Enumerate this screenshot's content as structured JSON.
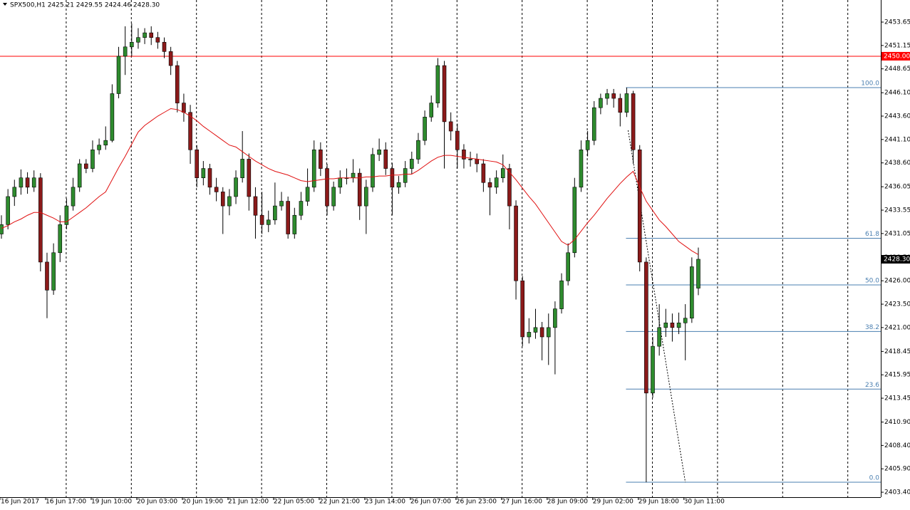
{
  "chart_data": {
    "type": "candlestick",
    "title": "SPX500,H1  2425.21 2429.55 2424.46 2428.30",
    "up_color": "#2e8b2e",
    "down_color": "#8b1a1a",
    "ylim": [
      2402.87,
      2456.01
    ],
    "yticks": [
      2453.65,
      2451.15,
      2448.65,
      {
        "value": 2446.1,
        "label": "2446.10"
      },
      {
        "value": 2443.6,
        "label": "2443.60"
      },
      {
        "value": 2441.1,
        "label": "2441.10"
      },
      {
        "value": 2438.6,
        "label": "2438.60"
      },
      2436.05,
      2433.55,
      2431.05,
      {
        "value": 2428.5,
        "label": "2428.50"
      },
      {
        "value": 2426,
        "label": "2426.00"
      },
      {
        "value": 2423.5,
        "label": "2423.50"
      },
      {
        "value": 2421,
        "label": "2421.00"
      },
      2418.45,
      2415.95,
      2413.45,
      {
        "value": 2410.9,
        "label": "2410.90"
      },
      {
        "value": 2408.4,
        "label": "2408.40"
      },
      {
        "value": 2405.9,
        "label": "2405.90"
      },
      {
        "value": 2403.4,
        "label": "2403.40"
      }
    ],
    "categories": [
      "16 Jun 2017",
      null,
      null,
      null,
      null,
      null,
      null,
      "16 Jun 17:00",
      null,
      null,
      null,
      null,
      null,
      null,
      "19 Jun 10:00",
      null,
      null,
      null,
      null,
      null,
      null,
      "20 Jun 03:00",
      null,
      null,
      null,
      null,
      null,
      null,
      "20 Jun 19:00",
      null,
      null,
      null,
      null,
      null,
      null,
      "21 Jun 12:00",
      null,
      null,
      null,
      null,
      null,
      null,
      "22 Jun 05:00",
      null,
      null,
      null,
      null,
      null,
      null,
      "22 Jun 21:00",
      null,
      null,
      null,
      null,
      null,
      null,
      "23 Jun 14:00",
      null,
      null,
      null,
      null,
      null,
      null,
      "26 Jun 07:00",
      null,
      null,
      null,
      null,
      null,
      null,
      "26 Jun 23:00",
      null,
      null,
      null,
      null,
      null,
      null,
      "27 Jun 16:00",
      null,
      null,
      null,
      null,
      null,
      null,
      "28 Jun 09:00",
      null,
      null,
      null,
      null,
      null,
      null,
      "29 Jun 02:00",
      null,
      null,
      null,
      null,
      null,
      null,
      "29 Jun 18:00",
      null,
      null,
      null,
      null,
      null,
      null,
      "30 Jun 11:00",
      null,
      null
    ],
    "ohlc": [
      [
        2431,
        2433,
        2430.5,
        2432
      ],
      [
        2432,
        2435.8,
        2431.5,
        2435
      ],
      [
        2435,
        2436.8,
        2434,
        2436
      ],
      [
        2436,
        2437.9,
        2435.2,
        2437
      ],
      [
        2437,
        2437.6,
        2435.3,
        2436
      ],
      [
        2436,
        2437.8,
        2435.5,
        2437
      ],
      [
        2437,
        2437.5,
        2427,
        2428
      ],
      [
        2428,
        2429,
        2422,
        2425
      ],
      [
        2425,
        2430,
        2424.5,
        2429
      ],
      [
        2429,
        2433,
        2428,
        2432
      ],
      [
        2432,
        2434.8,
        2431.5,
        2434
      ],
      [
        2434,
        2437,
        2433.5,
        2436
      ],
      [
        2436,
        2439,
        2435.5,
        2438.5
      ],
      [
        2438.5,
        2439,
        2437.5,
        2438
      ],
      [
        2438,
        2441,
        2437.6,
        2440
      ],
      [
        2440,
        2441.2,
        2439.5,
        2440.5
      ],
      [
        2440.5,
        2442.5,
        2440,
        2441
      ],
      [
        2441,
        2447,
        2440.8,
        2446
      ],
      [
        2446,
        2451,
        2445.5,
        2450
      ],
      [
        2450,
        2453.2,
        2448,
        2451
      ],
      [
        2451,
        2453.5,
        2450,
        2451.5
      ],
      [
        2451.5,
        2453,
        2450.8,
        2452
      ],
      [
        2452,
        2453,
        2451.3,
        2452.5
      ],
      [
        2452.5,
        2453.2,
        2451.2,
        2452
      ],
      [
        2452,
        2452.6,
        2450.8,
        2451.5
      ],
      [
        2451.5,
        2452,
        2449.8,
        2450.5
      ],
      [
        2450.5,
        2451,
        2448,
        2449
      ],
      [
        2449,
        2449.5,
        2444,
        2445
      ],
      [
        2445,
        2446,
        2443,
        2444
      ],
      [
        2444,
        2444.8,
        2438.5,
        2440
      ],
      [
        2440,
        2440.5,
        2436,
        2437
      ],
      [
        2437,
        2438.8,
        2436.2,
        2438
      ],
      [
        2438,
        2438.5,
        2435.2,
        2436
      ],
      [
        2436,
        2437,
        2434.5,
        2435.5
      ],
      [
        2435.5,
        2436,
        2431,
        2434
      ],
      [
        2434,
        2435.8,
        2433,
        2435
      ],
      [
        2435,
        2437.8,
        2434.2,
        2437
      ],
      [
        2437,
        2442,
        2436.5,
        2439
      ],
      [
        2439,
        2439.6,
        2433.5,
        2435
      ],
      [
        2435,
        2436,
        2430.5,
        2433
      ],
      [
        2433,
        2435.5,
        2431,
        2432
      ],
      [
        2432,
        2433.5,
        2431.2,
        2432.5
      ],
      [
        2432.5,
        2436.5,
        2432,
        2434
      ],
      [
        2434,
        2435.5,
        2433.5,
        2434.5
      ],
      [
        2434.5,
        2435,
        2430.5,
        2431
      ],
      [
        2431,
        2433.8,
        2430.5,
        2433
      ],
      [
        2433,
        2435.5,
        2432.5,
        2434.5
      ],
      [
        2434.5,
        2438,
        2434,
        2436
      ],
      [
        2436,
        2441,
        2435.5,
        2440
      ],
      [
        2440,
        2440.8,
        2437.2,
        2438
      ],
      [
        2438,
        2438.5,
        2433,
        2434
      ],
      [
        2434,
        2436.6,
        2433.5,
        2436
      ],
      [
        2436,
        2437.8,
        2435.3,
        2437
      ],
      [
        2437,
        2438,
        2436.3,
        2437
      ],
      [
        2437,
        2439,
        2436.5,
        2437.5
      ],
      [
        2437.5,
        2438,
        2432.5,
        2434
      ],
      [
        2434,
        2436.8,
        2431,
        2436
      ],
      [
        2436,
        2440.2,
        2435.5,
        2439.5
      ],
      [
        2439.5,
        2441.2,
        2438.8,
        2440
      ],
      [
        2440,
        2440.8,
        2437.3,
        2438
      ],
      [
        2438,
        2438.6,
        2433,
        2436
      ],
      [
        2436,
        2437.2,
        2435.3,
        2436.5
      ],
      [
        2436.5,
        2438.8,
        2436,
        2438
      ],
      [
        2438,
        2439.8,
        2437.4,
        2439
      ],
      [
        2439,
        2441.8,
        2438.5,
        2441
      ],
      [
        2441,
        2444.2,
        2440.5,
        2443.5
      ],
      [
        2443.5,
        2445.8,
        2443,
        2445
      ],
      [
        2445,
        2449.8,
        2444.5,
        2449
      ],
      [
        2449,
        2449.5,
        2438,
        2443
      ],
      [
        2443,
        2444,
        2441,
        2442
      ],
      [
        2442,
        2442.8,
        2438,
        2440
      ],
      [
        2440,
        2440.6,
        2438,
        2439
      ],
      [
        2439,
        2439.8,
        2438.2,
        2439
      ],
      [
        2439,
        2439.6,
        2437.6,
        2438.5
      ],
      [
        2438.5,
        2439,
        2435.5,
        2436.5
      ],
      [
        2436.5,
        2437,
        2433,
        2436
      ],
      [
        2436,
        2437.8,
        2435.3,
        2437
      ],
      [
        2437,
        2439.5,
        2436.5,
        2438
      ],
      [
        2438,
        2438.5,
        2431.5,
        2434
      ],
      [
        2434,
        2434.6,
        2424,
        2426
      ],
      [
        2426,
        2426.5,
        2419,
        2420
      ],
      [
        2420,
        2422,
        2419.3,
        2420.5
      ],
      [
        2420.5,
        2423,
        2419.8,
        2421
      ],
      [
        2421,
        2421.6,
        2417.5,
        2420
      ],
      [
        2420,
        2422.5,
        2417,
        2421
      ],
      [
        2421,
        2423.8,
        2416,
        2423
      ],
      [
        2423,
        2426.8,
        2422.5,
        2426
      ],
      [
        2426,
        2430,
        2425.5,
        2429
      ],
      [
        2429,
        2437,
        2428.5,
        2436
      ],
      [
        2436,
        2441,
        2435.5,
        2440
      ],
      [
        2440,
        2442,
        2439.3,
        2441
      ],
      [
        2441,
        2445.2,
        2440.5,
        2444.5
      ],
      [
        2444.5,
        2446,
        2443.8,
        2445.5
      ],
      [
        2445.5,
        2446.5,
        2444.8,
        2446
      ],
      [
        2446,
        2446.5,
        2444.5,
        2445.5
      ],
      [
        2445.5,
        2446,
        2442.5,
        2444
      ],
      [
        2444,
        2446.65,
        2443.5,
        2446
      ],
      [
        2446,
        2446.3,
        2438.5,
        2440
      ],
      [
        2440,
        2440.5,
        2427,
        2428
      ],
      [
        2428,
        2428.5,
        2404.47,
        2414
      ],
      [
        2414,
        2420,
        2413.5,
        2419
      ],
      [
        2419,
        2423.5,
        2418,
        2421
      ],
      [
        2421,
        2423,
        2420,
        2421.5
      ],
      [
        2421.5,
        2422.5,
        2419.5,
        2421
      ],
      [
        2421,
        2422.6,
        2420.3,
        2421.5
      ],
      [
        2421.5,
        2423.5,
        2417.5,
        2422
      ],
      [
        2422,
        2428.5,
        2421.5,
        2427.5
      ],
      [
        2425.21,
        2429.55,
        2424.46,
        2428.3
      ]
    ],
    "moving_average": {
      "color": "#e01010",
      "values": [
        2431.6,
        2431.9,
        2432.3,
        2432.6,
        2433,
        2433.3,
        2433.3,
        2433,
        2432.7,
        2432.3,
        2432.3,
        2432.8,
        2433.3,
        2433.8,
        2434.4,
        2435,
        2435.5,
        2436.8,
        2438.1,
        2439.3,
        2440.6,
        2441.9,
        2442.6,
        2443.1,
        2443.6,
        2444,
        2444.4,
        2444.3,
        2444,
        2443.6,
        2443.1,
        2442.5,
        2442,
        2441.5,
        2441,
        2440.5,
        2440.3,
        2439.8,
        2439.3,
        2438.8,
        2438.4,
        2438,
        2437.7,
        2437.5,
        2437.3,
        2437,
        2436.7,
        2436.6,
        2436.7,
        2436.8,
        2436.9,
        2436.9,
        2437,
        2437,
        2437,
        2437,
        2437.1,
        2437.1,
        2437.2,
        2437.2,
        2437.3,
        2437.3,
        2437.4,
        2437.4,
        2437.8,
        2438.3,
        2438.8,
        2439.2,
        2439.4,
        2439.4,
        2439.3,
        2439.2,
        2439.1,
        2439,
        2438.9,
        2438.8,
        2438.7,
        2438.4,
        2437.6,
        2436.8,
        2435.9,
        2435,
        2434.2,
        2433.2,
        2432.2,
        2431.2,
        2430.2,
        2429.8,
        2430.4,
        2431.3,
        2432.2,
        2433,
        2433.9,
        2434.8,
        2435.6,
        2436.4,
        2437.1,
        2437.7,
        2436,
        2434.5,
        2433.5,
        2432.5,
        2431.8,
        2431,
        2430.2,
        2429.7,
        2429.2,
        2428.8
      ]
    },
    "price_line": {
      "value": 2450,
      "label": "2450.00",
      "color": "#ff0000"
    },
    "last_price": {
      "value": 2428.3,
      "label": "2428.30"
    },
    "fibonacci": {
      "color": "#4a7fb0",
      "levels": [
        {
          "label": "100.0",
          "value": 2446.65
        },
        {
          "label": "61.8",
          "value": 2430.54
        },
        {
          "label": "50.0",
          "value": 2425.56
        },
        {
          "label": "38.2",
          "value": 2420.58
        },
        {
          "label": "23.6",
          "value": 2414.42
        },
        {
          "label": "0.0",
          "value": 2404.47
        }
      ]
    }
  }
}
